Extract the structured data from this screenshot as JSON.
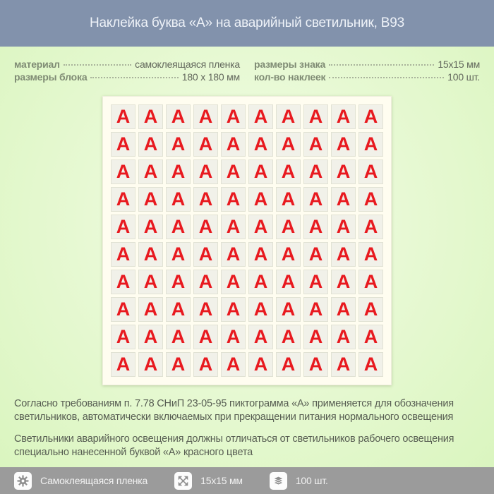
{
  "header": {
    "title": "Наклейка буква «А» на аварийный светильник, B93"
  },
  "specs": {
    "left": [
      {
        "label": "материал",
        "value": "самоклеящаяся пленка"
      },
      {
        "label": "размеры блока",
        "value": "180 x 180 мм"
      }
    ],
    "right": [
      {
        "label": "размеры знака",
        "value": "15x15 мм"
      },
      {
        "label": "кол-во наклеек",
        "value": "100 шт."
      }
    ]
  },
  "sticker_sheet": {
    "letter": "А",
    "rows": 10,
    "columns": 10
  },
  "notes": [
    "Согласно требованиям п. 7.78 СНиП 23-05-95 пиктограмма «А» применяется для обозначения светильников, автоматически включаемых при прекращении питания нормального освещения",
    "Светильники аварийного освещения должны отличаться от светильников рабочего освещения специально нанесенной буквой «А» красного цвета"
  ],
  "footer": {
    "items": [
      {
        "icon": "gear-icon",
        "label": "Самоклеящаяся пленка"
      },
      {
        "icon": "resize-arrows-icon",
        "label": "15x15 мм"
      },
      {
        "icon": "layers-icon",
        "label": "100 шт."
      }
    ]
  },
  "colors": {
    "header_bg": "#8292ac",
    "body_green": "#e1f7c8",
    "accent_red": "#e8191f",
    "footer_bg": "#9b9b9b",
    "sheet_bg": "#fffdf0"
  }
}
